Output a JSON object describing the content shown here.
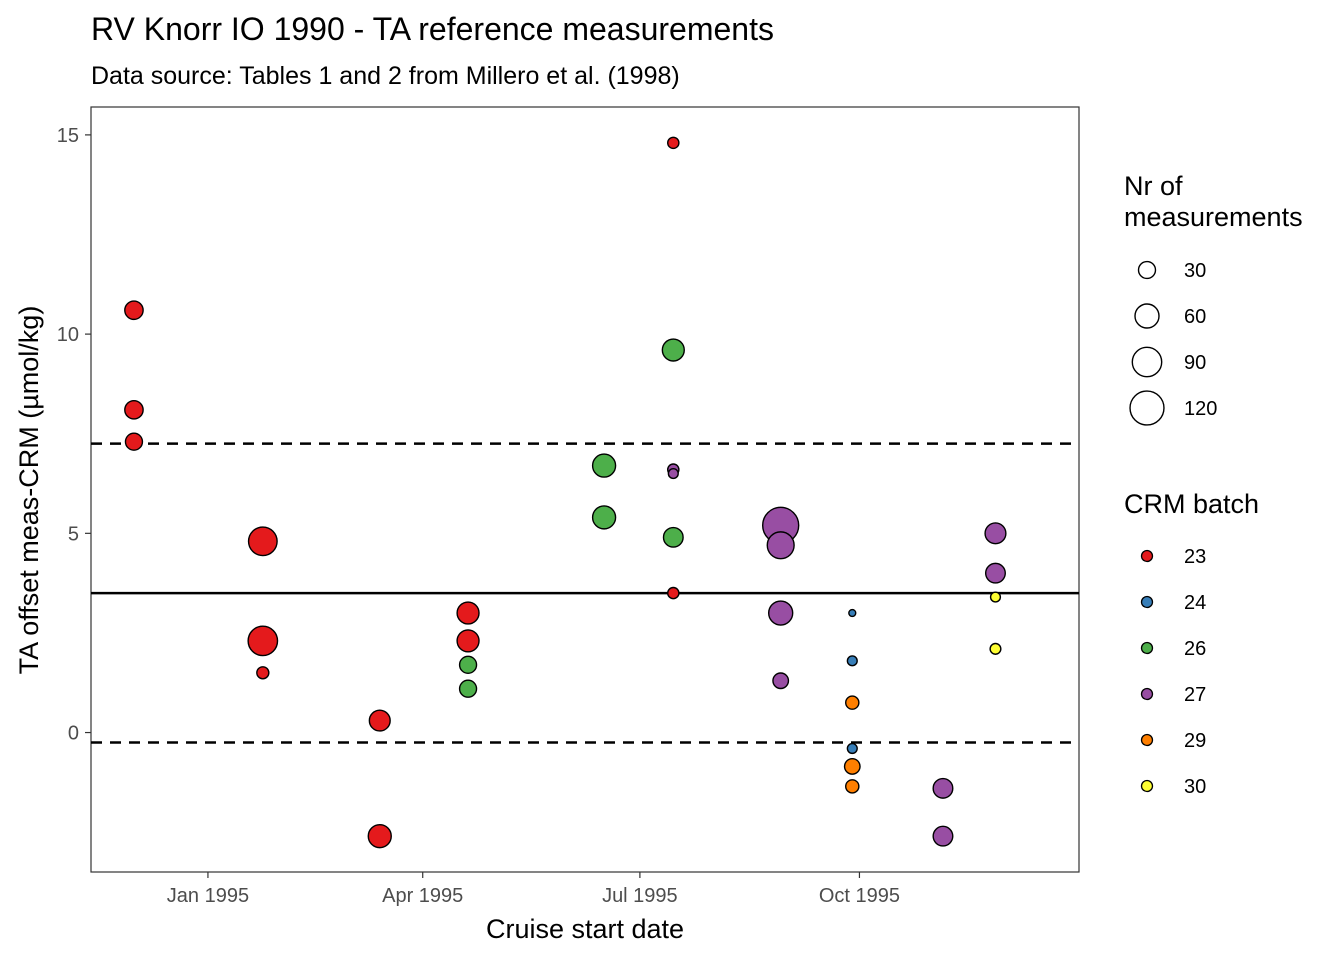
{
  "chart_data": {
    "type": "scatter",
    "title": "RV Knorr IO 1990 - TA reference measurements",
    "subtitle": "Data source: Tables 1 and 2 from Millero et al. (1998)",
    "xlabel": "Cruise start date",
    "ylabel": "TA offset meas-CRM (µmol/kg)",
    "x_ticks": [
      "Jan 1995",
      "Apr 1995",
      "Jul 1995",
      "Oct 1995"
    ],
    "x_tick_dates": [
      "1995-01-01",
      "1995-04-01",
      "1995-07-01",
      "1995-10-01"
    ],
    "xlim": [
      "1994-11-13",
      "1996-01-01"
    ],
    "y_ticks": [
      0,
      5,
      10,
      15
    ],
    "ylim": [
      -3.5,
      15.7
    ],
    "reference_lines": [
      {
        "name": "mean",
        "y": 3.5,
        "style": "solid"
      },
      {
        "name": "lower",
        "y": -0.25,
        "style": "dashed"
      },
      {
        "name": "upper",
        "y": 7.25,
        "style": "dashed"
      }
    ],
    "size_legend": {
      "title": "Nr of measurements",
      "values": [
        30,
        60,
        90,
        120
      ]
    },
    "color_legend": {
      "title": "CRM batch",
      "batches": [
        {
          "batch": "23",
          "color": "#E41A1C"
        },
        {
          "batch": "24",
          "color": "#377EB8"
        },
        {
          "batch": "26",
          "color": "#4DAF4A"
        },
        {
          "batch": "27",
          "color": "#984EA3"
        },
        {
          "batch": "29",
          "color": "#FF7F00"
        },
        {
          "batch": "30",
          "color": "#FFFF33"
        }
      ]
    },
    "points": [
      {
        "date": "1994-12-01",
        "y": 10.6,
        "batch": "23",
        "n": 35
      },
      {
        "date": "1994-12-01",
        "y": 8.1,
        "batch": "23",
        "n": 35
      },
      {
        "date": "1994-12-01",
        "y": 7.3,
        "batch": "23",
        "n": 30
      },
      {
        "date": "1995-01-24",
        "y": 4.8,
        "batch": "23",
        "n": 85
      },
      {
        "date": "1995-01-24",
        "y": 2.3,
        "batch": "23",
        "n": 90
      },
      {
        "date": "1995-01-24",
        "y": 1.5,
        "batch": "23",
        "n": 15
      },
      {
        "date": "1995-03-14",
        "y": 0.3,
        "batch": "23",
        "n": 45
      },
      {
        "date": "1995-03-14",
        "y": -2.6,
        "batch": "23",
        "n": 55
      },
      {
        "date": "1995-04-20",
        "y": 3.0,
        "batch": "23",
        "n": 50
      },
      {
        "date": "1995-04-20",
        "y": 2.3,
        "batch": "23",
        "n": 50
      },
      {
        "date": "1995-04-20",
        "y": 1.7,
        "batch": "26",
        "n": 30
      },
      {
        "date": "1995-04-20",
        "y": 1.1,
        "batch": "26",
        "n": 30
      },
      {
        "date": "1995-06-16",
        "y": 6.7,
        "batch": "26",
        "n": 55
      },
      {
        "date": "1995-06-16",
        "y": 5.4,
        "batch": "26",
        "n": 55
      },
      {
        "date": "1995-07-15",
        "y": 14.8,
        "batch": "23",
        "n": 13
      },
      {
        "date": "1995-07-15",
        "y": 9.6,
        "batch": "26",
        "n": 50
      },
      {
        "date": "1995-07-15",
        "y": 6.6,
        "batch": "27",
        "n": 13
      },
      {
        "date": "1995-07-15",
        "y": 6.5,
        "batch": "27",
        "n": 10
      },
      {
        "date": "1995-07-15",
        "y": 4.9,
        "batch": "26",
        "n": 40
      },
      {
        "date": "1995-07-15",
        "y": 3.5,
        "batch": "23",
        "n": 13
      },
      {
        "date": "1995-08-29",
        "y": 5.2,
        "batch": "27",
        "n": 135
      },
      {
        "date": "1995-08-29",
        "y": 4.7,
        "batch": "27",
        "n": 75
      },
      {
        "date": "1995-08-29",
        "y": 3.0,
        "batch": "27",
        "n": 60
      },
      {
        "date": "1995-08-29",
        "y": 1.3,
        "batch": "27",
        "n": 25
      },
      {
        "date": "1995-09-28",
        "y": 3.0,
        "batch": "24",
        "n": 5
      },
      {
        "date": "1995-09-28",
        "y": 1.8,
        "batch": "24",
        "n": 10
      },
      {
        "date": "1995-09-28",
        "y": 0.75,
        "batch": "29",
        "n": 18
      },
      {
        "date": "1995-09-28",
        "y": -0.4,
        "batch": "24",
        "n": 10
      },
      {
        "date": "1995-09-28",
        "y": -0.85,
        "batch": "29",
        "n": 25
      },
      {
        "date": "1995-09-28",
        "y": -1.35,
        "batch": "29",
        "n": 18
      },
      {
        "date": "1995-11-05",
        "y": -1.4,
        "batch": "27",
        "n": 40
      },
      {
        "date": "1995-11-05",
        "y": -2.6,
        "batch": "27",
        "n": 40
      },
      {
        "date": "1995-11-27",
        "y": 5.0,
        "batch": "27",
        "n": 45
      },
      {
        "date": "1995-11-27",
        "y": 4.0,
        "batch": "27",
        "n": 40
      },
      {
        "date": "1995-11-27",
        "y": 3.4,
        "batch": "30",
        "n": 10
      },
      {
        "date": "1995-11-27",
        "y": 2.1,
        "batch": "30",
        "n": 12
      }
    ]
  }
}
